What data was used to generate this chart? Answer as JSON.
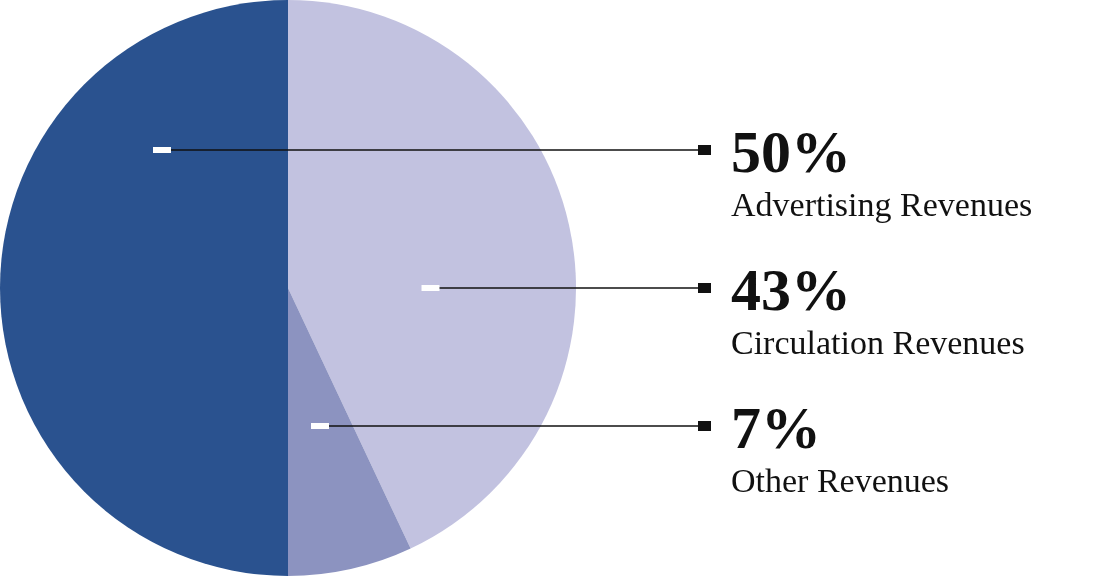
{
  "chart_data": {
    "type": "pie",
    "categories": [
      "Advertising Revenues",
      "Circulation Revenues",
      "Other Revenues"
    ],
    "values": [
      50,
      43,
      7
    ],
    "colors": [
      "#2a528f",
      "#c2c2e0",
      "#8c93c0"
    ],
    "value_labels": [
      "50%",
      "43%",
      "7%"
    ],
    "legend": false
  }
}
